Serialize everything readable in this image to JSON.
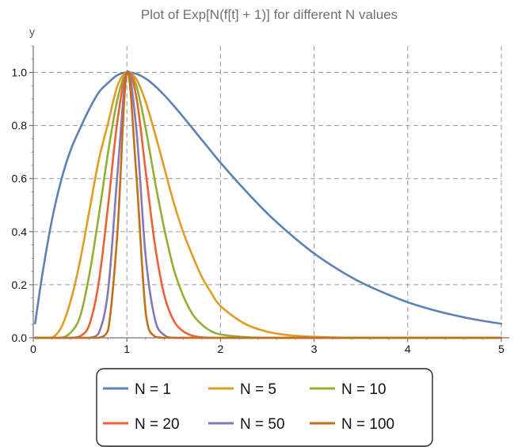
{
  "chart_data": {
    "type": "line",
    "title": "Plot of Exp[N(f[t] + 1)] for different N values",
    "xlabel": "",
    "ylabel": "y",
    "xlim": [
      0,
      5
    ],
    "ylim": [
      0,
      1.1
    ],
    "x_ticks": [
      "0",
      "1",
      "2",
      "3",
      "4",
      "5"
    ],
    "y_ticks": [
      "0.0",
      "0.2",
      "0.4",
      "0.6",
      "0.8",
      "1.0"
    ],
    "grid": true,
    "legend_position": "bottom",
    "x": [
      0.02,
      0.1,
      0.2,
      0.3,
      0.4,
      0.5,
      0.6,
      0.7,
      0.8,
      0.9,
      1.0,
      1.1,
      1.2,
      1.3,
      1.4,
      1.5,
      1.6,
      1.7,
      1.8,
      1.9,
      2.0,
      2.25,
      2.5,
      2.75,
      3.0,
      3.25,
      3.5,
      3.75,
      4.0,
      4.25,
      4.5,
      4.75,
      5.0
    ],
    "series": [
      {
        "name": "N = 1",
        "color": "#5e81b5",
        "values": [
          0.054,
          0.246,
          0.445,
          0.596,
          0.708,
          0.789,
          0.863,
          0.925,
          0.961,
          0.99,
          1.0,
          0.995,
          0.977,
          0.949,
          0.914,
          0.875,
          0.833,
          0.79,
          0.746,
          0.703,
          0.66,
          0.561,
          0.469,
          0.389,
          0.318,
          0.259,
          0.209,
          0.169,
          0.134,
          0.107,
          0.085,
          0.067,
          0.053
        ]
      },
      {
        "name": "N = 5",
        "color": "#e19c24",
        "values": [
          0.0,
          0.0,
          0.0,
          0.04,
          0.14,
          0.29,
          0.48,
          0.67,
          0.81,
          0.95,
          1.0,
          0.975,
          0.89,
          0.77,
          0.64,
          0.51,
          0.4,
          0.31,
          0.23,
          0.17,
          0.12,
          0.055,
          0.023,
          0.009,
          0.004,
          0.001,
          0.0,
          0.0,
          0.0,
          0.0,
          0.0,
          0.0,
          0.0
        ]
      },
      {
        "name": "N = 10",
        "color": "#8fb032",
        "values": [
          0.0,
          0.0,
          0.0,
          0.0,
          0.02,
          0.08,
          0.24,
          0.46,
          0.7,
          0.9,
          1.0,
          0.95,
          0.79,
          0.59,
          0.41,
          0.26,
          0.16,
          0.09,
          0.05,
          0.025,
          0.013,
          0.003,
          0.0,
          0.0,
          0.0,
          0.0,
          0.0,
          0.0,
          0.0,
          0.0,
          0.0,
          0.0,
          0.0
        ]
      },
      {
        "name": "N = 20",
        "color": "#eb6235",
        "values": [
          0.0,
          0.0,
          0.0,
          0.0,
          0.0,
          0.006,
          0.05,
          0.21,
          0.5,
          0.82,
          1.0,
          0.91,
          0.63,
          0.35,
          0.16,
          0.065,
          0.025,
          0.008,
          0.002,
          0.0,
          0.0,
          0.0,
          0.0,
          0.0,
          0.0,
          0.0,
          0.0,
          0.0,
          0.0,
          0.0,
          0.0,
          0.0,
          0.0
        ]
      },
      {
        "name": "N = 50",
        "color": "#8778b3",
        "values": [
          0.0,
          0.0,
          0.0,
          0.0,
          0.0,
          0.0,
          0.0,
          0.018,
          0.18,
          0.62,
          1.0,
          0.79,
          0.31,
          0.07,
          0.01,
          0.0,
          0.0,
          0.0,
          0.0,
          0.0,
          0.0,
          0.0,
          0.0,
          0.0,
          0.0,
          0.0,
          0.0,
          0.0,
          0.0,
          0.0,
          0.0,
          0.0,
          0.0
        ]
      },
      {
        "name": "N = 100",
        "color": "#c56e1a",
        "values": [
          0.0,
          0.0,
          0.0,
          0.0,
          0.0,
          0.0,
          0.0,
          0.0,
          0.03,
          0.4,
          1.0,
          0.62,
          0.1,
          0.004,
          0.0,
          0.0,
          0.0,
          0.0,
          0.0,
          0.0,
          0.0,
          0.0,
          0.0,
          0.0,
          0.0,
          0.0,
          0.0,
          0.0,
          0.0,
          0.0,
          0.0,
          0.0,
          0.0
        ]
      }
    ]
  }
}
